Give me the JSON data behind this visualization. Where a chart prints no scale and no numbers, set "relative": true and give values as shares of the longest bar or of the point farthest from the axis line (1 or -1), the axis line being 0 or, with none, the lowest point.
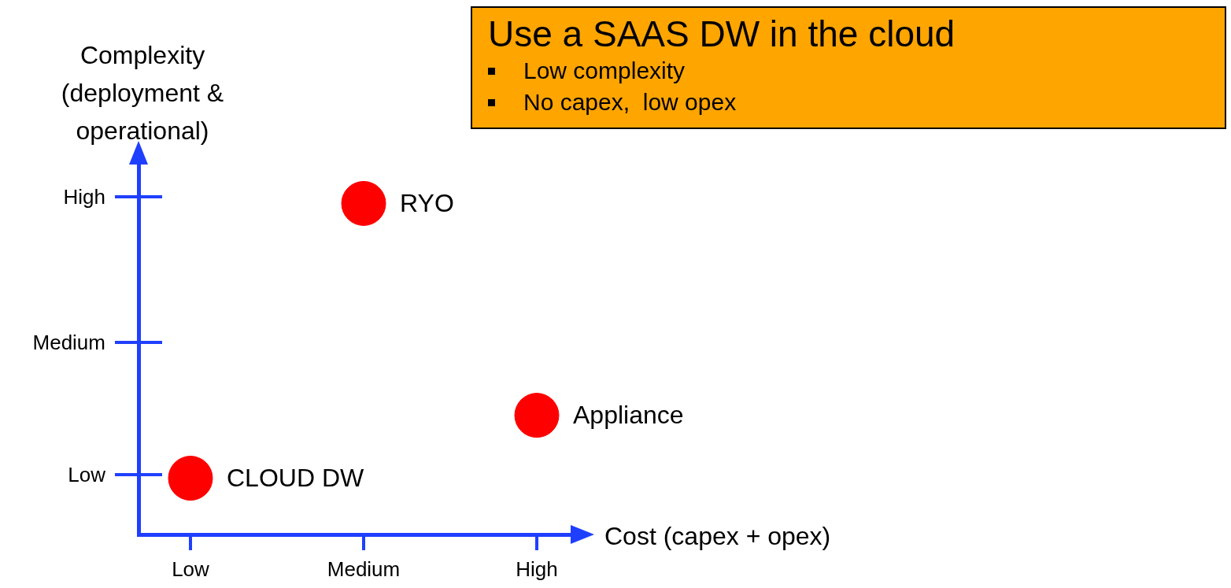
{
  "chart_data": {
    "type": "scatter",
    "xlabel": "Cost (capex + opex)",
    "ylabel": "Complexity\n(deployment &\noperational)",
    "categories": [
      "Low",
      "Medium",
      "High"
    ],
    "values": [
      0.17,
      1,
      0.36
    ],
    "relative": true,
    "color": "#ff0000",
    "marker": "circle",
    "grid": false,
    "legend": false,
    "annotations": [
      {
        "text": "CLOUD DW",
        "x": "Low",
        "y": 0.17
      },
      {
        "text": "RYO",
        "x": "Medium",
        "y": 1
      },
      {
        "text": "Appliance",
        "x": "High",
        "y": 0.36
      },
      "High",
      "Medium",
      "Low",
      "Use a SAAS DW in the cloud",
      "Low complexity",
      "No capex,  low opex"
    ]
  }
}
